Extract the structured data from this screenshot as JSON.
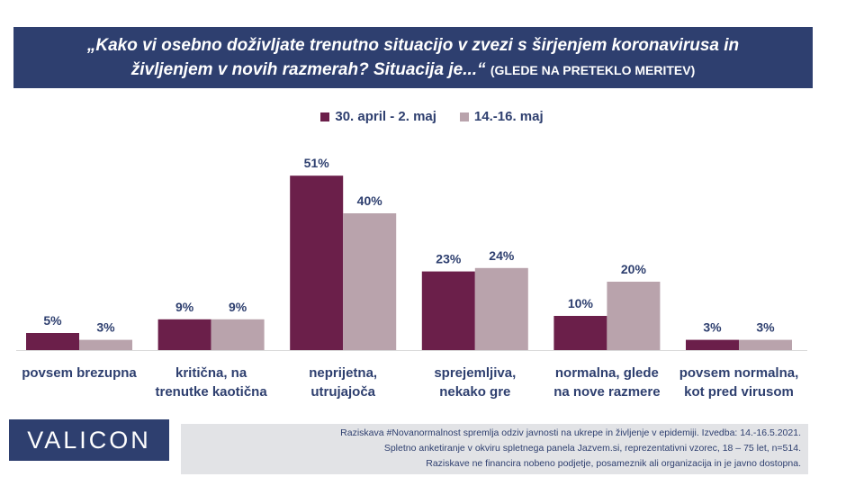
{
  "title": {
    "line1": "„Kako vi osebno doživljate trenutno situacijo v zvezi s širjenjem koronavirusa in",
    "line2": "življenjem v novih razmerah? Situacija je...“",
    "subtitle": "(GLEDE NA PRETEKLO MERITEV)"
  },
  "chart_data": {
    "type": "bar",
    "categories": [
      [
        "povsem brezupna"
      ],
      [
        "kritična, na",
        "trenutke kaotična"
      ],
      [
        "neprijetna,",
        "utrujajoča"
      ],
      [
        "sprejemljiva,",
        "nekako gre"
      ],
      [
        "normalna, glede",
        "na nove razmere"
      ],
      [
        "povsem normalna,",
        "kot pred virusom"
      ]
    ],
    "series": [
      {
        "name": "30. april - 2. maj",
        "values": [
          5,
          9,
          51,
          23,
          10,
          3
        ],
        "color": "#6b1f4a"
      },
      {
        "name": "14.-16. maj",
        "values": [
          3,
          9,
          40,
          24,
          20,
          3
        ],
        "color": "#b9a3ac"
      }
    ],
    "value_suffix": "%",
    "ylim": [
      0,
      60
    ],
    "grid": false,
    "legend_position": "top-center"
  },
  "logo": {
    "text": "VALICON"
  },
  "footnote": {
    "line1": "Raziskava #Novanormalnost spremlja odziv javnosti na ukrepe in življenje v epidemiji. Izvedba: 14.-16.5.2021.",
    "line2": "Spletno anketiranje v okviru spletnega panela Jazvem.si, reprezentativni vzorec, 18 – 75 let, n=514.",
    "line3": "Raziskave ne financira nobeno podjetje, posameznik ali organizacija in je javno dostopna."
  },
  "colors": {
    "header_bg": "#2e3f6f",
    "text": "#2e3f6f",
    "footnote_bg": "#e2e3e6"
  }
}
